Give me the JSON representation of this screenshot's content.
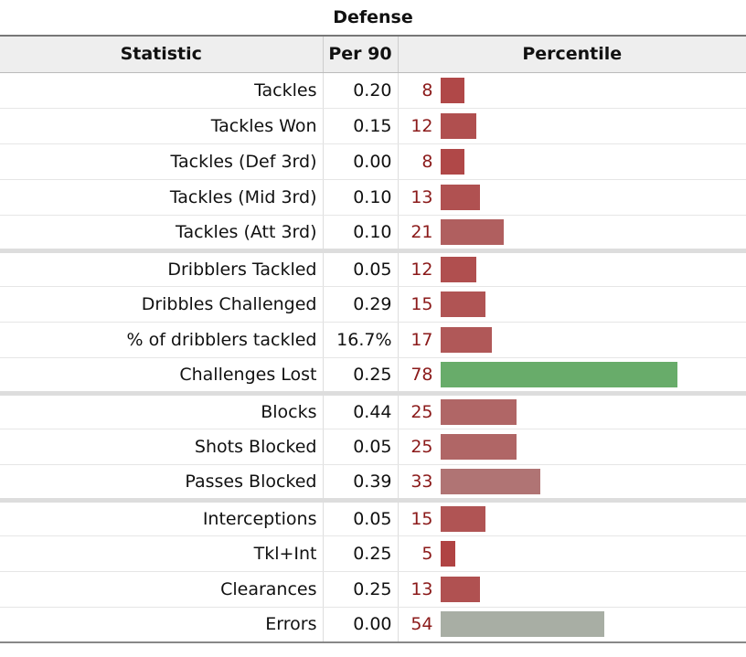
{
  "caption": "Defense",
  "headers": {
    "stat": "Statistic",
    "per90": "Per 90",
    "percentile": "Percentile"
  },
  "colors": {
    "low": "#b03a3a",
    "mid": "#a8aea4",
    "high": "#68ac6a",
    "pctText": "#8b1a1a"
  },
  "chart_data": {
    "type": "table",
    "title": "Defense",
    "columns": [
      "Statistic",
      "Per 90",
      "Percentile"
    ],
    "groups": [
      [
        {
          "stat": "Tackles",
          "per90": "0.20",
          "percentile": 8
        },
        {
          "stat": "Tackles Won",
          "per90": "0.15",
          "percentile": 12
        },
        {
          "stat": "Tackles (Def 3rd)",
          "per90": "0.00",
          "percentile": 8
        },
        {
          "stat": "Tackles (Mid 3rd)",
          "per90": "0.10",
          "percentile": 13
        },
        {
          "stat": "Tackles (Att 3rd)",
          "per90": "0.10",
          "percentile": 21
        }
      ],
      [
        {
          "stat": "Dribblers Tackled",
          "per90": "0.05",
          "percentile": 12
        },
        {
          "stat": "Dribbles Challenged",
          "per90": "0.29",
          "percentile": 15
        },
        {
          "stat": "% of dribblers tackled",
          "per90": "16.7%",
          "percentile": 17
        },
        {
          "stat": "Challenges Lost",
          "per90": "0.25",
          "percentile": 78
        }
      ],
      [
        {
          "stat": "Blocks",
          "per90": "0.44",
          "percentile": 25
        },
        {
          "stat": "Shots Blocked",
          "per90": "0.05",
          "percentile": 25
        },
        {
          "stat": "Passes Blocked",
          "per90": "0.39",
          "percentile": 33
        }
      ],
      [
        {
          "stat": "Interceptions",
          "per90": "0.05",
          "percentile": 15
        },
        {
          "stat": "Tkl+Int",
          "per90": "0.25",
          "percentile": 5
        },
        {
          "stat": "Clearances",
          "per90": "0.25",
          "percentile": 13
        },
        {
          "stat": "Errors",
          "per90": "0.00",
          "percentile": 54
        }
      ]
    ],
    "xlim": [
      0,
      100
    ]
  }
}
